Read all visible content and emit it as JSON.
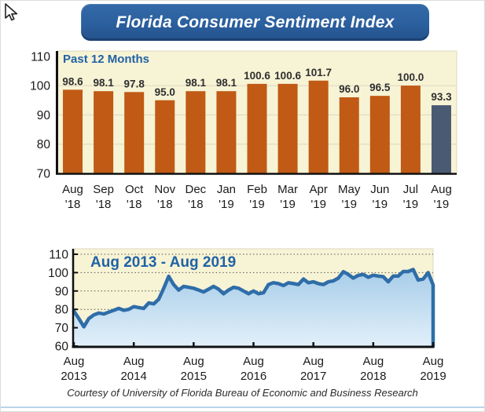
{
  "banner": {
    "title": "Florida Consumer Sentiment Index",
    "bg_color": "#2b5f9e",
    "text_color": "#ffffff"
  },
  "footer": {
    "text": "Courtesy of University of Florida Bureau of Economic and Business Research"
  },
  "colors": {
    "plot_background": "#f7f3d5",
    "bar_orange": "#c05a15",
    "bar_slate": "#4a5a72",
    "line_blue": "#2e6da8",
    "area_fill_top": "#9fc8e6",
    "area_fill_bottom": "#e2f0fa",
    "axis_black": "#111111",
    "grid_light": "#ddd7c0",
    "grid_dotted": "#555555",
    "label_dark": "#1a1a1a",
    "value_label": "#2f2f2f",
    "chart_title_blue": "#2063a5"
  },
  "chart_data": [
    {
      "type": "bar",
      "title": "Past 12 Months",
      "categories_line1": [
        "Aug",
        "Sep",
        "Oct",
        "Nov",
        "Dec",
        "Jan",
        "Feb",
        "Mar",
        "Apr",
        "May",
        "Jun",
        "Jul",
        "Aug"
      ],
      "categories_line2": [
        "'18",
        "'18",
        "'18",
        "'18",
        "'18",
        "'19",
        "'19",
        "'19",
        "'19",
        "'19",
        "'19",
        "'19",
        "'19"
      ],
      "values": [
        98.6,
        98.1,
        97.8,
        95.0,
        98.1,
        98.1,
        100.6,
        100.6,
        101.7,
        96.0,
        96.5,
        100.0,
        93.3
      ],
      "value_labels": [
        "98.6",
        "98.1",
        "97.8",
        "95.0",
        "98.1",
        "98.1",
        "100.6",
        "100.6",
        "101.7",
        "96.0",
        "96.5",
        "100.0",
        "93.3"
      ],
      "ylim": [
        70,
        110
      ],
      "yticks": [
        70,
        80,
        90,
        100,
        110
      ],
      "grid": "solid-light",
      "legend": "none",
      "note": "last bar highlighted slate blue"
    },
    {
      "type": "area",
      "title": "Aug 2013 - Aug 2019",
      "x_tick_line1": [
        "Aug",
        "Aug",
        "Aug",
        "Aug",
        "Aug",
        "Aug",
        "Aug"
      ],
      "x_tick_line2": [
        "2013",
        "2014",
        "2015",
        "2016",
        "2017",
        "2018",
        "2019"
      ],
      "x_range": "monthly, Aug 2013 through Aug 2019",
      "values": [
        79.0,
        75.0,
        70.5,
        75.0,
        77.0,
        78.0,
        77.5,
        78.5,
        79.5,
        80.5,
        79.5,
        80.0,
        81.5,
        81.0,
        80.5,
        83.5,
        83.0,
        85.5,
        91.5,
        98.0,
        93.5,
        90.5,
        92.5,
        92.0,
        91.5,
        90.5,
        89.5,
        91.0,
        92.5,
        91.0,
        88.5,
        90.5,
        92.0,
        91.5,
        90.0,
        88.5,
        90.0,
        88.5,
        89.0,
        93.5,
        94.5,
        94.0,
        93.0,
        94.5,
        94.0,
        93.5,
        96.5,
        94.5,
        95.0,
        94.0,
        93.5,
        95.0,
        95.5,
        97.0,
        100.5,
        99.0,
        97.0,
        98.5,
        99.0,
        97.5,
        98.6,
        98.1,
        97.8,
        95.0,
        98.1,
        98.1,
        100.6,
        100.6,
        101.7,
        96.0,
        96.5,
        100.0,
        93.3
      ],
      "ylim": [
        60,
        110
      ],
      "yticks": [
        60,
        70,
        80,
        90,
        100,
        110
      ],
      "grid": "dotted"
    }
  ]
}
